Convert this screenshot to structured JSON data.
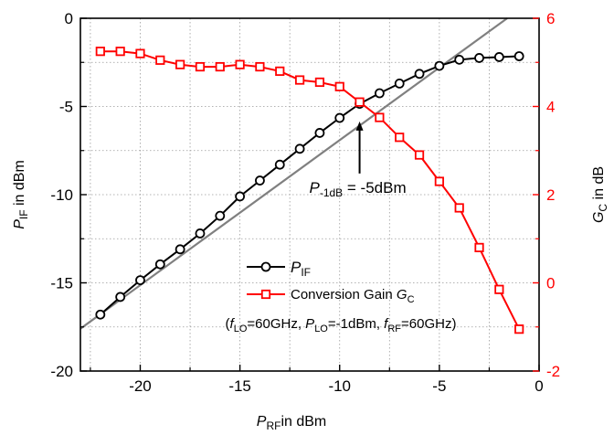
{
  "chart_data": {
    "type": "line",
    "x_axis": {
      "label_main": "P",
      "label_sub": "RF",
      "label_rest": "in dBm",
      "range": [
        -23,
        0
      ],
      "ticks": [
        -20,
        -15,
        -10,
        -5,
        0
      ],
      "tick_labels": [
        "-20",
        "-15",
        "-10",
        "-5",
        "0"
      ]
    },
    "y_left": {
      "label_main": "P",
      "label_sub": "IF",
      "label_rest": " in dBm",
      "range": [
        -20,
        0
      ],
      "ticks": [
        -20,
        -15,
        -10,
        -5,
        0
      ],
      "tick_labels": [
        "-20",
        "-15",
        "-10",
        "-5",
        "0"
      ],
      "color": "#000000"
    },
    "y_right": {
      "label_main": "G",
      "label_sub": "C",
      "label_rest": " in dB",
      "range": [
        -2,
        6
      ],
      "ticks": [
        -2,
        0,
        2,
        4,
        6
      ],
      "tick_labels": [
        "-2",
        "0",
        "2",
        "4",
        "6"
      ],
      "color": "#ff0000"
    },
    "grid": true,
    "series": [
      {
        "name": "P_IF",
        "axis": "left",
        "marker": "circle",
        "color": "#000000",
        "x": [
          -22,
          -21,
          -20,
          -19,
          -18,
          -17,
          -16,
          -15,
          -14,
          -13,
          -12,
          -11,
          -10,
          -9,
          -8,
          -7,
          -6,
          -5,
          -4,
          -3,
          -2,
          -1
        ],
        "y": [
          -16.8,
          -15.8,
          -14.85,
          -13.95,
          -13.1,
          -12.2,
          -11.2,
          -10.1,
          -9.2,
          -8.3,
          -7.4,
          -6.5,
          -5.65,
          -4.85,
          -4.25,
          -3.7,
          -3.15,
          -2.7,
          -2.35,
          -2.25,
          -2.2,
          -2.15
        ]
      },
      {
        "name": "Conversion Gain G_C",
        "axis": "right",
        "marker": "square",
        "color": "#ff0000",
        "x": [
          -22,
          -21,
          -20,
          -19,
          -18,
          -17,
          -16,
          -15,
          -14,
          -13,
          -12,
          -11,
          -10,
          -9,
          -8,
          -7,
          -6,
          -5,
          -4,
          -3,
          -2,
          -1
        ],
        "y": [
          5.25,
          5.25,
          5.2,
          5.05,
          4.95,
          4.9,
          4.9,
          4.95,
          4.9,
          4.8,
          4.6,
          4.55,
          4.45,
          4.1,
          3.75,
          3.3,
          2.9,
          2.3,
          1.7,
          0.8,
          -0.15,
          -1.05
        ]
      }
    ],
    "reference_line": {
      "color": "#808080",
      "x": [
        -23,
        -1.6
      ],
      "y": [
        -17.6,
        0
      ]
    },
    "legend": {
      "position": "center-bottom",
      "entries": [
        {
          "main": "P",
          "sub": "IF",
          "rest": ""
        },
        {
          "main": "Conversion Gain ",
          "italic": "G",
          "sub": "C",
          "rest": ""
        }
      ]
    },
    "annotations": {
      "p1db": {
        "main": "P",
        "sub": "-1dB",
        "rest": " = -5dBm",
        "arrow_x": -9,
        "arrow_from_y": -8.8,
        "arrow_to_y": -5.85
      },
      "conditions": {
        "open": "(",
        "f_lo_main": "f",
        "f_lo_sub": "LO",
        "f_lo_rest": "=60GHz, ",
        "p_lo_main": "P",
        "p_lo_sub": "LO",
        "p_lo_rest": "=-1dBm, ",
        "f_rf_main": "f",
        "f_rf_sub": "RF",
        "f_rf_rest": "=60GHz)"
      }
    }
  }
}
